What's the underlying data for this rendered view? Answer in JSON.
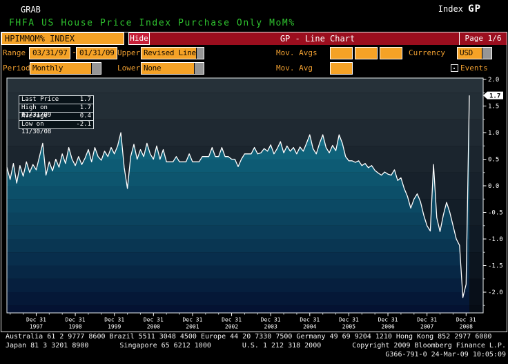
{
  "header": {
    "grab": "GRAB",
    "index_label": "Index",
    "function_code": "GP",
    "security_title": "FHFA US House Price Index Purchase Only MoM%"
  },
  "controls": {
    "ticker": "HPIMMOM% INDEX",
    "hide_label": "Hide",
    "chart_title": "GP - Line Chart",
    "page": "Page 1/6",
    "range_label": "Range",
    "range_start": "03/31/97",
    "range_separator": "-",
    "range_end": "01/31/09",
    "upper_label": "Upper",
    "upper_value": "Revised Line",
    "mov_avgs_label": "Mov. Avgs",
    "currency_label": "Currency",
    "currency_value": "USD",
    "period_label": "Period",
    "period_value": "Monthly",
    "lower_label": "Lower",
    "lower_value": "None",
    "mov_avg_label": "Mov. Avg",
    "events_label": "Events"
  },
  "chart_data": {
    "type": "area",
    "title": "FHFA US House Price Index Purchase Only MoM%",
    "frequency": "monthly",
    "x_start": "1997-03-31",
    "x_end": "2009-01-31",
    "ylim": [
      -2.4,
      2.0
    ],
    "yticks": [
      2.0,
      1.5,
      1.0,
      0.5,
      0.0,
      -0.5,
      -1.0,
      -1.5,
      -2.0
    ],
    "x_ticks": [
      {
        "label": "Dec 31",
        "year": "1997"
      },
      {
        "label": "Dec 31",
        "year": "1998"
      },
      {
        "label": "Dec 31",
        "year": "1999"
      },
      {
        "label": "Dec 31",
        "year": "2000"
      },
      {
        "label": "Dec 31",
        "year": "2001"
      },
      {
        "label": "Dec 31",
        "year": "2002"
      },
      {
        "label": "Dec 31",
        "year": "2003"
      },
      {
        "label": "Dec 31",
        "year": "2004"
      },
      {
        "label": "Dec 31",
        "year": "2005"
      },
      {
        "label": "Dec 31",
        "year": "2006"
      },
      {
        "label": "Dec 31",
        "year": "2007"
      },
      {
        "label": "Dec 31",
        "year": "2008"
      }
    ],
    "legend": [
      {
        "label": "Last Price",
        "value": "1.7"
      },
      {
        "label": "High on 01/31/09",
        "value": "1.7"
      },
      {
        "label": "Average",
        "value": "0.4"
      },
      {
        "label": "Low on 11/30/08",
        "value": "-2.1"
      }
    ],
    "last_price": "1.7",
    "values": [
      0.35,
      0.12,
      0.42,
      0.05,
      0.38,
      0.18,
      0.45,
      0.25,
      0.4,
      0.3,
      0.55,
      0.8,
      0.2,
      0.45,
      0.28,
      0.5,
      0.35,
      0.6,
      0.42,
      0.72,
      0.5,
      0.38,
      0.55,
      0.4,
      0.52,
      0.68,
      0.45,
      0.72,
      0.55,
      0.48,
      0.65,
      0.55,
      0.72,
      0.6,
      0.75,
      1.0,
      0.35,
      -0.05,
      0.55,
      0.78,
      0.5,
      0.68,
      0.55,
      0.8,
      0.6,
      0.5,
      0.75,
      0.5,
      0.68,
      0.45,
      0.45,
      0.45,
      0.55,
      0.45,
      0.45,
      0.45,
      0.6,
      0.45,
      0.45,
      0.45,
      0.55,
      0.55,
      0.55,
      0.72,
      0.55,
      0.55,
      0.72,
      0.55,
      0.55,
      0.5,
      0.5,
      0.36,
      0.5,
      0.6,
      0.6,
      0.6,
      0.72,
      0.6,
      0.62,
      0.7,
      0.65,
      0.77,
      0.6,
      0.7,
      0.83,
      0.62,
      0.75,
      0.65,
      0.72,
      0.6,
      0.73,
      0.65,
      0.8,
      0.96,
      0.7,
      0.6,
      0.8,
      0.96,
      0.72,
      0.62,
      0.76,
      0.66,
      0.96,
      0.8,
      0.55,
      0.47,
      0.47,
      0.44,
      0.47,
      0.38,
      0.42,
      0.34,
      0.38,
      0.29,
      0.24,
      0.2,
      0.26,
      0.22,
      0.2,
      0.3,
      0.1,
      0.15,
      -0.05,
      -0.2,
      -0.42,
      -0.25,
      -0.15,
      -0.3,
      -0.55,
      -0.75,
      -0.85,
      0.4,
      -0.6,
      -0.86,
      -0.55,
      -0.31,
      -0.5,
      -0.75,
      -1.0,
      -1.12,
      -2.1,
      -1.85,
      1.7
    ],
    "colors": {
      "line": "#ffffff",
      "background_stops": [
        [
          113,
          "#27323a"
        ],
        [
          230,
          "#1b252e"
        ],
        [
          340,
          "#101b26"
        ],
        [
          453,
          "#050b14"
        ]
      ],
      "fill_stops": [
        [
          113,
          "#2f9fbb"
        ],
        [
          225,
          "#0e6078"
        ],
        [
          340,
          "#0a3c58"
        ],
        [
          453,
          "#041030"
        ]
      ],
      "axis": "#ffffff"
    },
    "legend_position": "top-left",
    "grid": false
  },
  "footer": {
    "line1": "Australia 61 2 9777 8600 Brazil 5511 3048 4500 Europe 44 20 7330 7500 Germany 49 69 9204 1210 Hong Kong 852 2977 6000",
    "line2_segments": [
      "Japan 81 3 3201 8900",
      "Singapore 65 6212 1000",
      "U.S. 1 212 318 2000",
      "Copyright 2009 Bloomberg Finance L.P."
    ],
    "line3": "G366-791-0 24-Mar-09 10:05:09"
  }
}
